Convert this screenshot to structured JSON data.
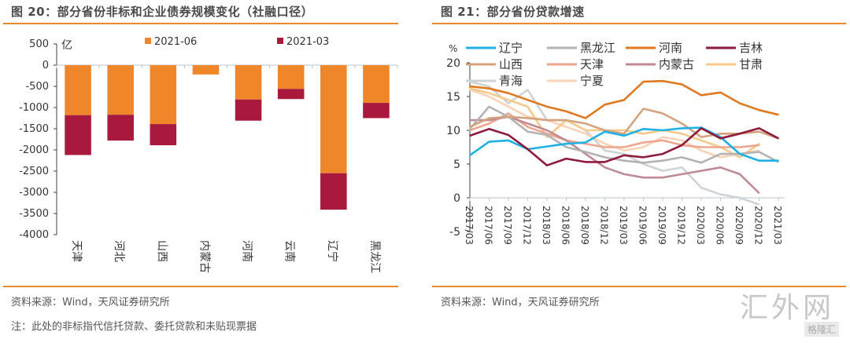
{
  "left": {
    "title": "图 20：部分省份非标和企业债券规模变化（社融口径）",
    "source": "资料来源：Wind，天风证券研究所",
    "note": "注：此处的非标指代信托贷款、委托贷款和未贴现票据"
  },
  "right": {
    "title": "图 21：部分省份贷款增速",
    "source": "资料来源：Wind，天风证券研究所"
  },
  "watermark": {
    "main": "汇外网",
    "sub": "格隆汇"
  },
  "chart_data": [
    {
      "type": "bar",
      "stacked": true,
      "title": "图 20：部分省份非标和企业债券规模变化（社融口径）",
      "ylabel": "亿",
      "ylim": [
        -4000,
        500
      ],
      "yticks": [
        500,
        0,
        -500,
        -1000,
        -1500,
        -2000,
        -2500,
        -3000,
        -3500,
        -4000
      ],
      "categories": [
        "天津",
        "河北",
        "山西",
        "内蒙古",
        "河南",
        "云南",
        "辽宁",
        "黑龙江"
      ],
      "legend_position": "top",
      "series": [
        {
          "name": "2021-06",
          "color": "#f0862a",
          "values": [
            -1180,
            -1170,
            -1390,
            -220,
            -810,
            -560,
            -2550,
            -890
          ]
        },
        {
          "name": "2021-03",
          "color": "#a8193d",
          "values": [
            -940,
            -610,
            -500,
            0,
            -500,
            -240,
            -860,
            -360
          ]
        }
      ]
    },
    {
      "type": "line",
      "title": "图 21：部分省份贷款增速",
      "ylabel": "%",
      "ylim": [
        -5,
        20
      ],
      "yticks": [
        20,
        15,
        10,
        5,
        0,
        -5
      ],
      "x": [
        "2017/03",
        "2017/06",
        "2017/09",
        "2017/12",
        "2018/03",
        "2018/06",
        "2018/09",
        "2018/12",
        "2019/03",
        "2019/06",
        "2019/09",
        "2019/12",
        "2020/03",
        "2020/06",
        "2020/09",
        "2020/12",
        "2021/03"
      ],
      "legend_position": "top",
      "series": [
        {
          "name": "辽宁",
          "color": "#1fb1e6",
          "values": [
            6.3,
            8.3,
            8.5,
            7.2,
            7.6,
            8.0,
            8.2,
            9.8,
            9.2,
            10.2,
            10.0,
            10.3,
            10.4,
            9.0,
            6.5,
            5.5,
            5.5
          ]
        },
        {
          "name": "黑龙江",
          "color": "#b3b3b3",
          "values": [
            10.2,
            13.5,
            12.0,
            9.8,
            9.3,
            7.5,
            6.8,
            6.0,
            5.5,
            5.2,
            5.5,
            6.0,
            5.2,
            6.5,
            6.5,
            6.8,
            5.3
          ]
        },
        {
          "name": "河南",
          "color": "#e07a22",
          "values": [
            16.5,
            16.2,
            15.5,
            14.5,
            13.5,
            12.8,
            11.8,
            13.8,
            14.5,
            17.2,
            17.3,
            16.8,
            15.2,
            15.6,
            14.0,
            13.0,
            12.3
          ]
        },
        {
          "name": "吉林",
          "color": "#8e1a3c",
          "values": [
            9.2,
            10.2,
            9.3,
            7.2,
            4.8,
            5.8,
            5.3,
            5.3,
            6.3,
            6.0,
            6.5,
            7.8,
            10.3,
            8.8,
            9.5,
            10.3,
            8.8
          ]
        },
        {
          "name": "山西",
          "color": "#d4a37e",
          "values": [
            10.5,
            11.8,
            12.0,
            11.8,
            11.5,
            11.5,
            11.0,
            10.0,
            9.5,
            13.2,
            12.5,
            11.0,
            9.0,
            9.5,
            9.5,
            9.8,
            8.8
          ]
        },
        {
          "name": "天津",
          "color": "#eea58e",
          "values": [
            10.0,
            11.0,
            12.5,
            10.5,
            9.5,
            8.5,
            8.0,
            7.5,
            7.5,
            8.2,
            8.5,
            7.8,
            7.5,
            7.5,
            7.5,
            7.8,
            null
          ]
        },
        {
          "name": "内蒙古",
          "color": "#c08a94",
          "values": [
            11.5,
            11.5,
            12.0,
            11.0,
            10.0,
            8.5,
            6.5,
            4.5,
            3.5,
            3.0,
            3.0,
            3.5,
            4.0,
            4.5,
            3.5,
            0.7,
            null
          ]
        },
        {
          "name": "甘肃",
          "color": "#f5c98a",
          "values": [
            16.2,
            15.5,
            14.5,
            13.5,
            9.0,
            11.5,
            10.0,
            10.0,
            10.0,
            9.5,
            10.0,
            9.5,
            8.5,
            7.5,
            6.0,
            8.0,
            null
          ]
        },
        {
          "name": "青海",
          "color": "#cfd3d6",
          "values": [
            17.2,
            16.5,
            14.0,
            16.0,
            11.5,
            11.5,
            10.0,
            7.0,
            6.5,
            5.0,
            4.0,
            4.5,
            1.5,
            0.5,
            0.0,
            -1.0,
            null
          ]
        },
        {
          "name": "宁夏",
          "color": "#f9d2b8",
          "values": [
            16.0,
            15.0,
            13.5,
            12.0,
            11.5,
            10.5,
            9.5,
            8.0,
            7.0,
            7.5,
            9.0,
            8.5,
            7.0,
            6.0,
            6.5,
            7.0,
            null
          ]
        }
      ]
    }
  ]
}
